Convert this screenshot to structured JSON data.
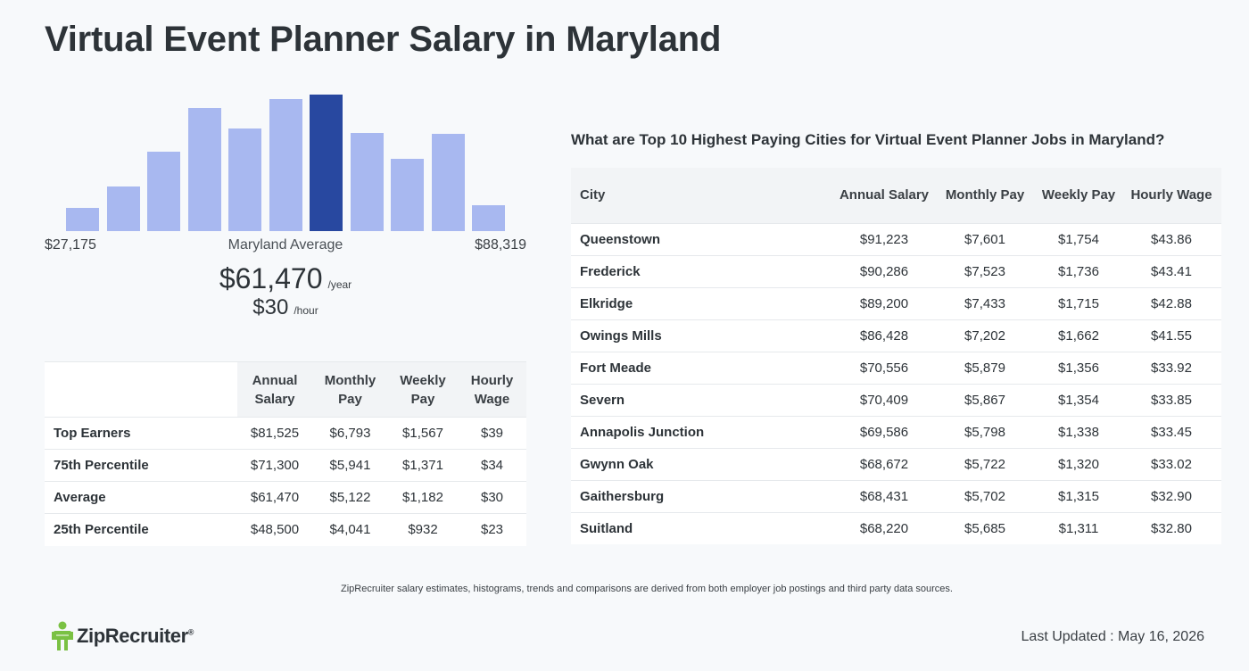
{
  "title": "Virtual Event Planner Salary in Maryland",
  "chart_data": {
    "type": "bar",
    "bars": [
      0.17,
      0.33,
      0.58,
      0.9,
      0.75,
      0.97,
      1.0,
      0.72,
      0.53,
      0.71,
      0.19
    ],
    "highlight_index": 6,
    "colors": {
      "bar": "#a8b8f0",
      "highlight": "#2848a0"
    }
  },
  "range": {
    "min": "$27,175",
    "max": "$88,319",
    "average_label": "Maryland Average"
  },
  "average": {
    "yearly": "$61,470",
    "yearly_unit": "/year",
    "hourly": "$30",
    "hourly_unit": "/hour"
  },
  "percentile_table": {
    "headers": [
      "Annual Salary",
      "Monthly Pay",
      "Weekly Pay",
      "Hourly Wage"
    ],
    "rows": [
      {
        "label": "Top Earners",
        "annual": "$81,525",
        "monthly": "$6,793",
        "weekly": "$1,567",
        "hourly": "$39"
      },
      {
        "label": "75th Percentile",
        "annual": "$71,300",
        "monthly": "$5,941",
        "weekly": "$1,371",
        "hourly": "$34"
      },
      {
        "label": "Average",
        "annual": "$61,470",
        "monthly": "$5,122",
        "weekly": "$1,182",
        "hourly": "$30"
      },
      {
        "label": "25th Percentile",
        "annual": "$48,500",
        "monthly": "$4,041",
        "weekly": "$932",
        "hourly": "$23"
      }
    ]
  },
  "cities": {
    "heading": "What are Top 10 Highest Paying Cities for Virtual Event Planner Jobs in Maryland?",
    "headers": [
      "City",
      "Annual Salary",
      "Monthly Pay",
      "Weekly Pay",
      "Hourly Wage"
    ],
    "rows": [
      {
        "city": "Queenstown",
        "annual": "$91,223",
        "monthly": "$7,601",
        "weekly": "$1,754",
        "hourly": "$43.86"
      },
      {
        "city": "Frederick",
        "annual": "$90,286",
        "monthly": "$7,523",
        "weekly": "$1,736",
        "hourly": "$43.41"
      },
      {
        "city": "Elkridge",
        "annual": "$89,200",
        "monthly": "$7,433",
        "weekly": "$1,715",
        "hourly": "$42.88"
      },
      {
        "city": "Owings Mills",
        "annual": "$86,428",
        "monthly": "$7,202",
        "weekly": "$1,662",
        "hourly": "$41.55"
      },
      {
        "city": "Fort Meade",
        "annual": "$70,556",
        "monthly": "$5,879",
        "weekly": "$1,356",
        "hourly": "$33.92"
      },
      {
        "city": "Severn",
        "annual": "$70,409",
        "monthly": "$5,867",
        "weekly": "$1,354",
        "hourly": "$33.85"
      },
      {
        "city": "Annapolis Junction",
        "annual": "$69,586",
        "monthly": "$5,798",
        "weekly": "$1,338",
        "hourly": "$33.45"
      },
      {
        "city": "Gwynn Oak",
        "annual": "$68,672",
        "monthly": "$5,722",
        "weekly": "$1,320",
        "hourly": "$33.02"
      },
      {
        "city": "Gaithersburg",
        "annual": "$68,431",
        "monthly": "$5,702",
        "weekly": "$1,315",
        "hourly": "$32.90"
      },
      {
        "city": "Suitland",
        "annual": "$68,220",
        "monthly": "$5,685",
        "weekly": "$1,311",
        "hourly": "$32.80"
      }
    ]
  },
  "disclaimer": "ZipRecruiter salary estimates, histograms, trends and comparisons are derived from both employer job postings and third party data sources.",
  "logo": {
    "text": "ZipRecruiter",
    "reg": "®",
    "icon": "ziprecruiter-person-icon",
    "color": "#7ac143"
  },
  "last_updated": "Last Updated : May 16, 2026"
}
